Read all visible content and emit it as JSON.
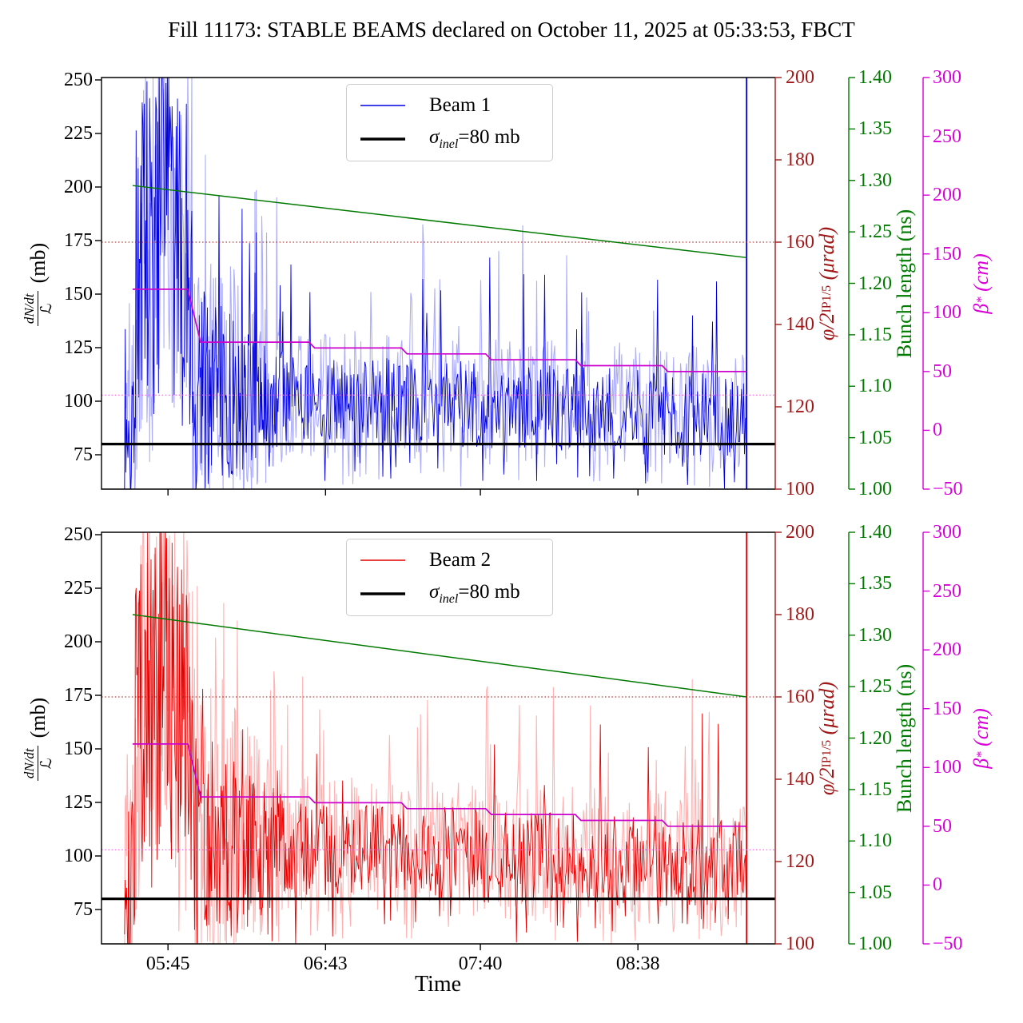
{
  "title": "Fill 11173: STABLE BEAMS declared on October 11, 2025 at 05:33:53, FBCT",
  "time_axis": {
    "label": "Time",
    "tick_labels": [
      "05:45",
      "06:43",
      "07:40",
      "08:38"
    ],
    "range_start": "05:21",
    "range_end": "09:29"
  },
  "left_axis": {
    "label_numerator": "dN/dt",
    "label_denominator": "ℒ",
    "label_unit": "(mb)",
    "tick_labels": [
      "250",
      "225",
      "200",
      "175",
      "150",
      "125",
      "100",
      "75"
    ],
    "tick_values": [
      250,
      225,
      200,
      175,
      150,
      125,
      100,
      75
    ],
    "range": [
      59,
      251
    ]
  },
  "right_axis_crossing": {
    "label_main": "φ/2",
    "label_sub": "IP1/5",
    "label_unit": "(μrad)",
    "tick_labels": [
      "200",
      "180",
      "160",
      "140",
      "120",
      "100"
    ],
    "tick_values": [
      200,
      180,
      160,
      140,
      120,
      100
    ],
    "range": [
      100,
      200
    ],
    "color": "#a01818"
  },
  "right_axis_bunch": {
    "label": "Bunch length (ns)",
    "tick_labels": [
      "1.40",
      "1.35",
      "1.30",
      "1.25",
      "1.20",
      "1.15",
      "1.10",
      "1.05",
      "1.00"
    ],
    "tick_values": [
      1.4,
      1.35,
      1.3,
      1.25,
      1.2,
      1.15,
      1.1,
      1.05,
      1.0
    ],
    "range": [
      1.0,
      1.4
    ],
    "color": "#007a00"
  },
  "right_axis_beta": {
    "label_main": "β",
    "label_sup": "*",
    "label_unit": "(cm)",
    "tick_labels": [
      "300",
      "250",
      "200",
      "150",
      "100",
      "50",
      "0",
      "−50"
    ],
    "tick_values": [
      300,
      250,
      200,
      150,
      100,
      50,
      0,
      -50
    ],
    "range": [
      -50,
      300
    ],
    "color": "#d900d9"
  },
  "legends": [
    {
      "beam_label": "Beam 1",
      "sigma_symbol": "σ",
      "sigma_sub": "inel",
      "sigma_rest": "=80 mb"
    },
    {
      "beam_label": "Beam 2",
      "sigma_symbol": "σ",
      "sigma_sub": "inel",
      "sigma_rest": "=80 mb"
    }
  ],
  "chart_data": [
    {
      "type": "line",
      "subplot": "top",
      "beam": {
        "name": "Beam 1",
        "color": "#0000e0",
        "color_light": "rgba(0,0,255,0.32)",
        "data_start": "05:29",
        "burst_start": "05:33",
        "burst_end": "05:54",
        "data_end": "09:18",
        "burst_range_mb": [
          60,
          250
        ],
        "steady_mean_start_mb": 104,
        "steady_mean_end_mb": 93,
        "steady_spread_mb": 22,
        "spike_max_mb": 185,
        "dip_min_mb": 59,
        "end_spike": "full-height"
      },
      "sigma_inel_mb": 80,
      "crossing_half_angle_urad": {
        "value": 160,
        "style": "dotted"
      },
      "bunch_length_ns": {
        "start": 1.295,
        "end": 1.225,
        "t_start": "05:32",
        "t_end": "09:18"
      },
      "beta_star_cm": {
        "levels": [
          {
            "from": "05:32",
            "value": 120
          },
          {
            "from": "05:57",
            "value": 75
          },
          {
            "from": "06:39",
            "value": 70
          },
          {
            "from": "07:13",
            "value": 65
          },
          {
            "from": "07:44",
            "value": 60
          },
          {
            "from": "08:17",
            "value": 55
          },
          {
            "from": "08:49",
            "value": 50
          }
        ],
        "until": "09:18",
        "dotted_reference": 30
      }
    },
    {
      "type": "line",
      "subplot": "bottom",
      "beam": {
        "name": "Beam 2",
        "color": "#e60000",
        "color_light": "rgba(255,0,0,0.30)",
        "data_start": "05:29",
        "burst_start": "05:33",
        "burst_end": "05:55",
        "data_end": "09:18",
        "burst_range_mb": [
          60,
          250
        ],
        "steady_mean_start_mb": 106,
        "steady_mean_end_mb": 95,
        "steady_spread_mb": 24,
        "spike_max_mb": 190,
        "dip_min_mb": 59,
        "end_spike": "full-height"
      },
      "sigma_inel_mb": 80,
      "crossing_half_angle_urad": {
        "value": 160,
        "style": "dotted"
      },
      "bunch_length_ns": {
        "start": 1.32,
        "end": 1.24,
        "t_start": "05:32",
        "t_end": "09:18"
      },
      "beta_star_cm": {
        "levels": [
          {
            "from": "05:32",
            "value": 120
          },
          {
            "from": "05:57",
            "value": 75
          },
          {
            "from": "06:39",
            "value": 70
          },
          {
            "from": "07:13",
            "value": 65
          },
          {
            "from": "07:44",
            "value": 60
          },
          {
            "from": "08:17",
            "value": 55
          },
          {
            "from": "08:49",
            "value": 50
          }
        ],
        "until": "09:18",
        "dotted_reference": 30
      }
    }
  ]
}
